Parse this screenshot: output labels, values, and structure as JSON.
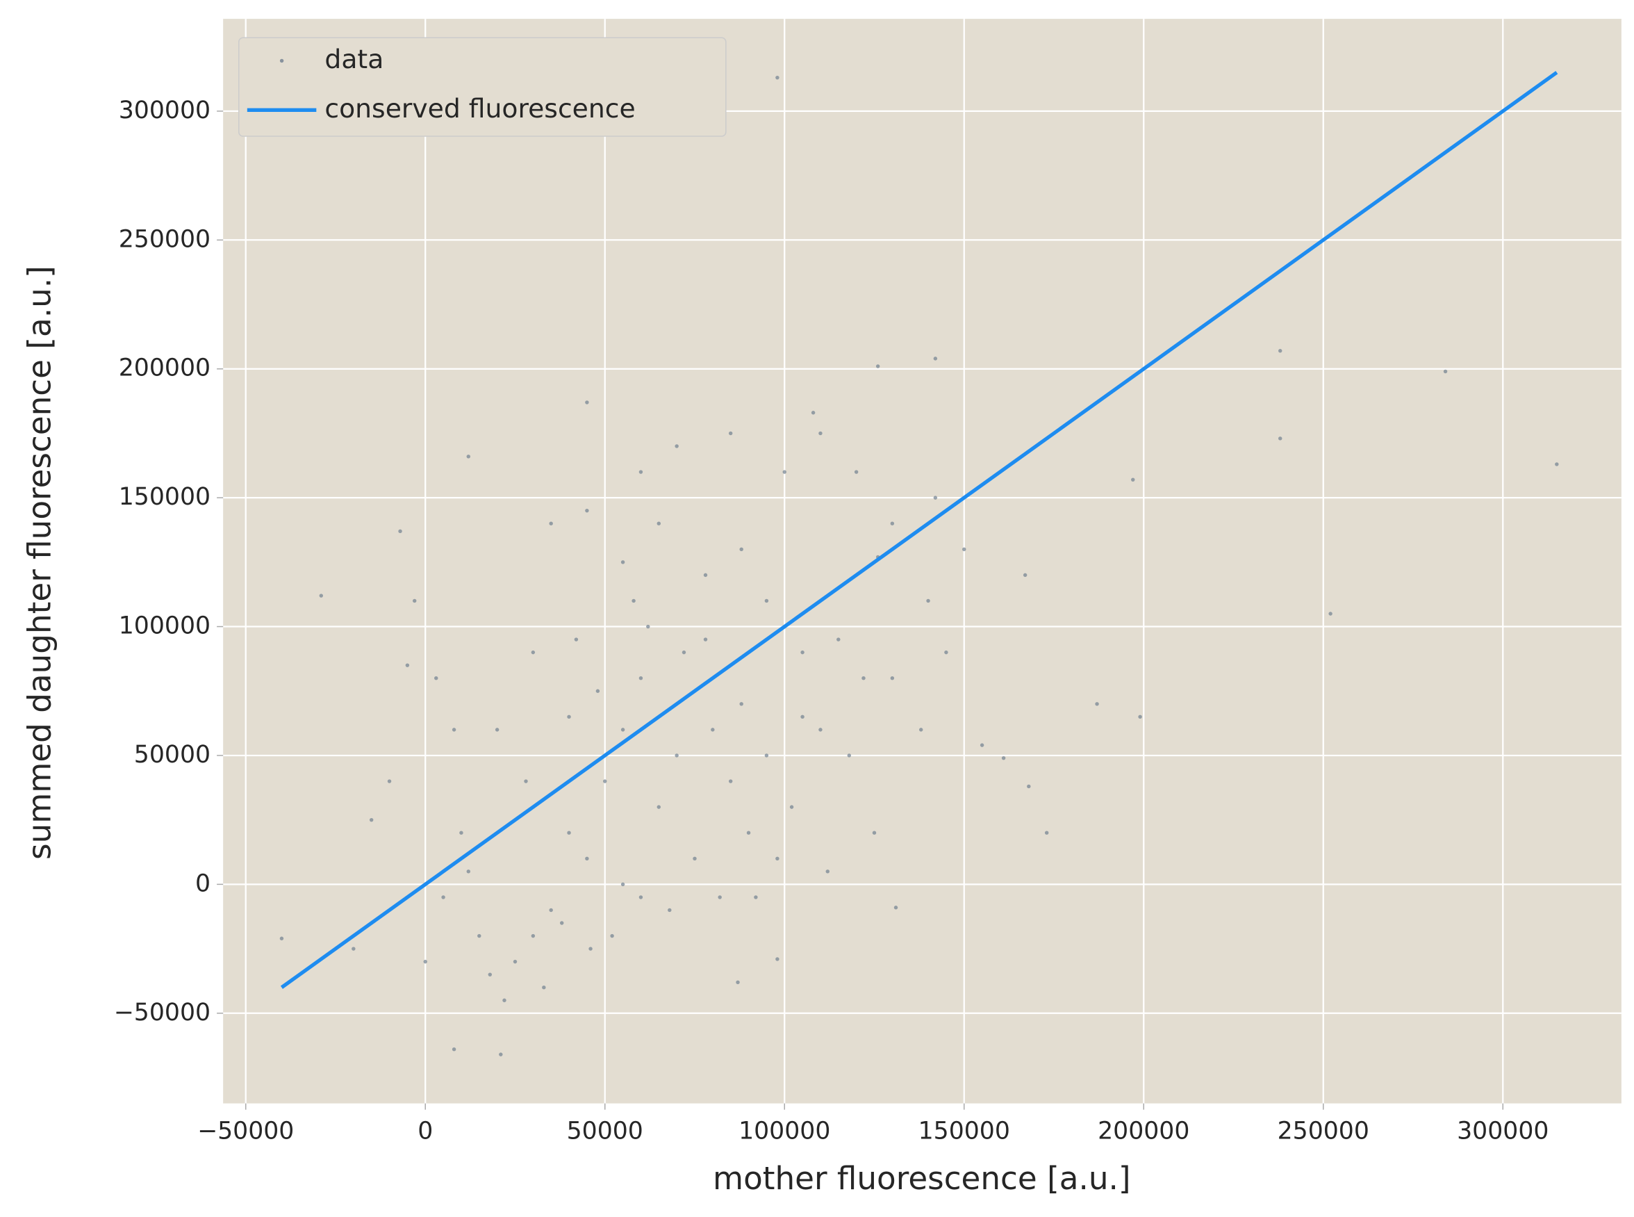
{
  "chart_data": {
    "type": "scatter",
    "xlabel": "mother fluorescence [a.u.]",
    "ylabel": "summed daughter fluorescence [a.u.]",
    "xlim": [
      -56300,
      333000
    ],
    "ylim": [
      -85000,
      335800
    ],
    "xticks": [
      {
        "value": -50000,
        "label": "−50000"
      },
      0,
      50000,
      100000,
      150000,
      200000,
      250000,
      300000
    ],
    "yticks": [
      {
        "value": -50000,
        "label": "−50000"
      },
      0,
      50000,
      100000,
      150000,
      200000,
      250000,
      300000
    ],
    "grid": true,
    "legend": "upper left",
    "series": [
      {
        "name": "data",
        "type": "scatter",
        "color": "#708090",
        "x": [
          50000,
          55000,
          40000,
          60000,
          35000,
          45000,
          65000,
          70000,
          30000,
          55000,
          48000,
          62000,
          58000,
          42000,
          38000,
          25000,
          28000,
          20000,
          15000,
          10000,
          5000,
          72000,
          80000,
          85000,
          90000,
          78000,
          88000,
          95000,
          100000,
          105000,
          110000,
          82000,
          75000,
          68000,
          52000,
          46000,
          33000,
          22000,
          18000,
          12000,
          8000,
          3000,
          -5000,
          -10000,
          -15000,
          -20000,
          -3000,
          0,
          35000,
          45000,
          60000,
          70000,
          85000,
          100000,
          110000,
          120000,
          130000,
          140000,
          145000,
          150000,
          122000,
          118000,
          125000,
          112000,
          98000,
          92000,
          60000,
          40000,
          30000,
          55000,
          65000,
          78000,
          88000,
          95000,
          102000,
          105000,
          115000,
          130000,
          138000,
          142000,
          126000,
          108000,
          98000,
          238000,
          238000,
          284000,
          315000,
          252000,
          197000,
          199000,
          187000,
          173000,
          168000,
          167000,
          161000,
          155000,
          -40000,
          -29000,
          -7000,
          126000,
          142000,
          131000,
          45000,
          12000,
          8000,
          21000,
          98000,
          87000
        ],
        "values": [
          40000,
          60000,
          20000,
          80000,
          -10000,
          10000,
          30000,
          50000,
          -20000,
          0,
          75000,
          100000,
          110000,
          95000,
          -15000,
          -30000,
          40000,
          60000,
          -20000,
          20000,
          -5000,
          90000,
          60000,
          40000,
          20000,
          120000,
          130000,
          110000,
          100000,
          90000,
          60000,
          -5000,
          10000,
          -10000,
          -20000,
          -25000,
          -40000,
          -45000,
          -35000,
          5000,
          60000,
          80000,
          85000,
          40000,
          25000,
          -25000,
          110000,
          -30000,
          140000,
          145000,
          160000,
          170000,
          175000,
          160000,
          175000,
          160000,
          140000,
          110000,
          90000,
          130000,
          80000,
          50000,
          20000,
          5000,
          10000,
          -5000,
          -5000,
          65000,
          90000,
          125000,
          140000,
          95000,
          70000,
          50000,
          30000,
          65000,
          95000,
          80000,
          60000,
          150000,
          127000,
          183000,
          313000,
          207000,
          173000,
          199000,
          163000,
          105000,
          157000,
          65000,
          70000,
          20000,
          38000,
          120000,
          49000,
          54000,
          -21000,
          112000,
          137000,
          201000,
          204000,
          -9000,
          187000,
          166000,
          -64000,
          -66000,
          -29000,
          -38000
        ]
      },
      {
        "name": "conserved fluorescence",
        "type": "line",
        "color": "#1e8cf0",
        "x": [
          -40000,
          315000
        ],
        "values": [
          -40000,
          315000
        ]
      }
    ]
  }
}
